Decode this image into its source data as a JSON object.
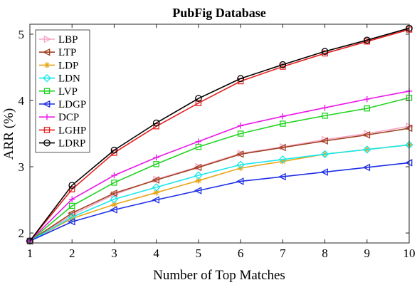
{
  "chart_data": {
    "type": "line",
    "title": "PubFig Database",
    "xlabel": "Number of Top Matches",
    "ylabel": "ARR (%)",
    "x": [
      1,
      2,
      3,
      4,
      5,
      6,
      7,
      8,
      9,
      10
    ],
    "xlim": [
      1,
      10
    ],
    "ylim": [
      1.85,
      5.15
    ],
    "xticks": [
      "1",
      "2",
      "3",
      "4",
      "5",
      "6",
      "7",
      "8",
      "9",
      "10"
    ],
    "yticks": [
      2,
      3,
      4,
      5
    ],
    "ytick_labels": [
      "2",
      "3",
      "4",
      "5"
    ],
    "grid": false,
    "legend_position": "top-left",
    "series": [
      {
        "name": "LBP",
        "color": "#f7a6c8",
        "marker": "triangle-right",
        "values": [
          1.88,
          2.27,
          2.58,
          2.81,
          3.0,
          3.2,
          3.3,
          3.41,
          3.5,
          3.61
        ]
      },
      {
        "name": "LTP",
        "color": "#a0401f",
        "marker": "triangle-left",
        "values": [
          1.88,
          2.3,
          2.6,
          2.8,
          2.99,
          3.19,
          3.29,
          3.39,
          3.48,
          3.58
        ]
      },
      {
        "name": "LDP",
        "color": "#e8a61a",
        "marker": "star",
        "values": [
          1.88,
          2.22,
          2.43,
          2.61,
          2.79,
          2.98,
          3.08,
          3.19,
          3.26,
          3.33
        ]
      },
      {
        "name": "LDN",
        "color": "#17e8ec",
        "marker": "diamond",
        "values": [
          1.88,
          2.24,
          2.51,
          2.69,
          2.87,
          3.03,
          3.11,
          3.19,
          3.26,
          3.33
        ]
      },
      {
        "name": "LVP",
        "color": "#22d322",
        "marker": "square",
        "values": [
          1.88,
          2.41,
          2.76,
          3.04,
          3.3,
          3.5,
          3.65,
          3.77,
          3.88,
          4.04
        ]
      },
      {
        "name": "LDGP",
        "color": "#1f2fe6",
        "marker": "triangle-left",
        "values": [
          1.88,
          2.17,
          2.35,
          2.5,
          2.64,
          2.78,
          2.85,
          2.92,
          2.99,
          3.06
        ]
      },
      {
        "name": "DCP",
        "color": "#ea17e6",
        "marker": "plus",
        "values": [
          1.88,
          2.51,
          2.87,
          3.14,
          3.38,
          3.62,
          3.76,
          3.89,
          4.02,
          4.14
        ]
      },
      {
        "name": "LGHP",
        "color": "#e61f1f",
        "marker": "square",
        "values": [
          1.88,
          2.66,
          3.21,
          3.61,
          3.96,
          4.29,
          4.51,
          4.71,
          4.89,
          5.07
        ]
      },
      {
        "name": "LDRP",
        "color": "#000000",
        "marker": "circle",
        "values": [
          1.88,
          2.72,
          3.25,
          3.66,
          4.03,
          4.33,
          4.54,
          4.74,
          4.91,
          5.09
        ]
      }
    ]
  }
}
